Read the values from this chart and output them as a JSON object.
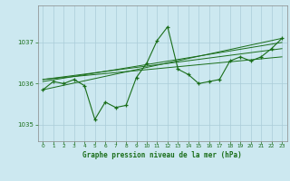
{
  "bg_color": "#cce8f0",
  "grid_color": "#aaccd8",
  "line_color": "#1a6e1a",
  "title": "Graphe pression niveau de la mer (hPa)",
  "xlim": [
    -0.5,
    23.5
  ],
  "ylim": [
    1034.6,
    1037.9
  ],
  "yticks": [
    1035,
    1036,
    1037
  ],
  "xticks": [
    0,
    1,
    2,
    3,
    4,
    5,
    6,
    7,
    8,
    9,
    10,
    11,
    12,
    13,
    14,
    15,
    16,
    17,
    18,
    19,
    20,
    21,
    22,
    23
  ],
  "main_series_x": [
    0,
    1,
    2,
    3,
    4,
    5,
    6,
    7,
    8,
    9,
    10,
    11,
    12,
    13,
    14,
    15,
    16,
    17,
    18,
    19,
    20,
    21,
    22,
    23
  ],
  "main_series_y": [
    1035.85,
    1036.05,
    1036.0,
    1036.1,
    1035.95,
    1035.13,
    1035.55,
    1035.42,
    1035.47,
    1036.15,
    1036.5,
    1037.05,
    1037.38,
    1036.35,
    1036.22,
    1036.0,
    1036.05,
    1036.1,
    1036.55,
    1036.65,
    1036.55,
    1036.65,
    1036.85,
    1037.1
  ],
  "trend_lines": [
    [
      [
        0,
        23
      ],
      [
        1035.85,
        1037.1
      ]
    ],
    [
      [
        0,
        23
      ],
      [
        1036.05,
        1037.0
      ]
    ],
    [
      [
        0,
        23
      ],
      [
        1036.1,
        1036.85
      ]
    ],
    [
      [
        0,
        23
      ],
      [
        1036.1,
        1036.65
      ]
    ]
  ]
}
